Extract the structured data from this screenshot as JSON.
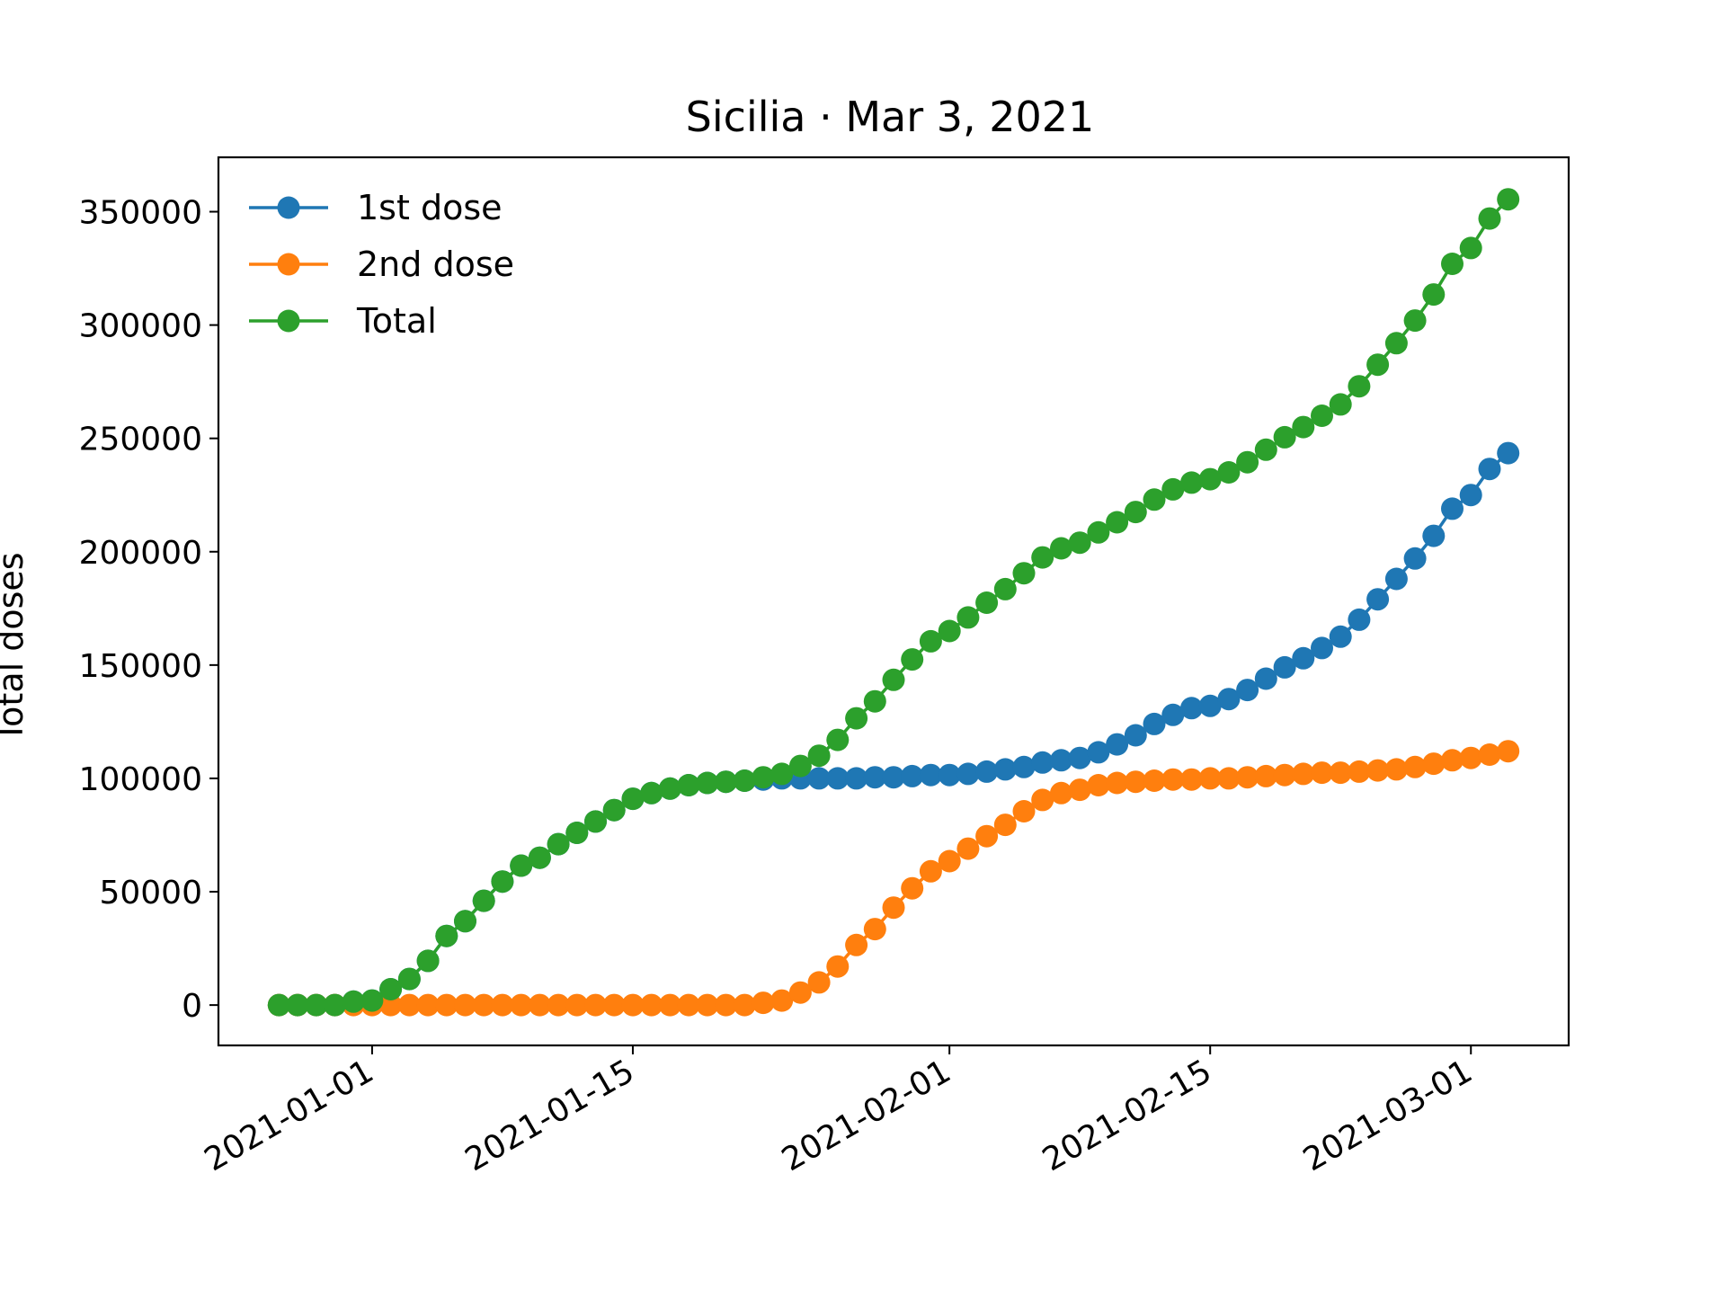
{
  "chart_data": {
    "type": "line",
    "title": "Sicilia · Mar 3, 2021",
    "xlabel": "",
    "ylabel": "Total doses",
    "x_start": "2020-12-27",
    "x_end": "2021-03-03",
    "x_ticks": [
      "2021-01-01",
      "2021-01-15",
      "2021-02-01",
      "2021-02-15",
      "2021-03-01"
    ],
    "xlim": [
      "2020-12-23T18:00",
      "2021-03-06T06:00"
    ],
    "y_ticks": [
      0,
      50000,
      100000,
      150000,
      200000,
      250000,
      300000,
      350000
    ],
    "ylim": [
      -17800,
      374000
    ],
    "grid": false,
    "legend_position": "top-left",
    "marker": "circle",
    "series": [
      {
        "name": "1st dose",
        "color": "#1f77b4",
        "values": [
          0,
          0,
          0,
          0,
          1500,
          2000,
          7000,
          11500,
          19500,
          30500,
          37000,
          46000,
          54500,
          61500,
          65000,
          71000,
          76000,
          81000,
          86000,
          91000,
          93500,
          95500,
          97000,
          98000,
          98500,
          99000,
          99500,
          100000,
          100000,
          100000,
          100000,
          100000,
          100500,
          100500,
          101000,
          101500,
          101500,
          102000,
          103000,
          104000,
          105000,
          107000,
          108000,
          109000,
          111500,
          115000,
          119000,
          124000,
          128000,
          131000,
          132000,
          135000,
          139000,
          144000,
          149000,
          153000,
          157500,
          162500,
          170000,
          179000,
          188000,
          197000,
          207000,
          219000,
          225000,
          236500,
          243500
        ]
      },
      {
        "name": "2nd dose",
        "color": "#ff7f0e",
        "values": [
          0,
          0,
          0,
          0,
          0,
          0,
          0,
          0,
          0,
          0,
          0,
          0,
          0,
          0,
          0,
          0,
          0,
          0,
          0,
          0,
          0,
          0,
          0,
          0,
          0,
          0,
          1000,
          2000,
          5500,
          10000,
          17000,
          26500,
          33500,
          43000,
          51500,
          59000,
          63500,
          69000,
          74500,
          79500,
          85500,
          90500,
          93500,
          95000,
          97000,
          98000,
          98500,
          99000,
          99500,
          99500,
          100000,
          100000,
          100500,
          101000,
          101500,
          102000,
          102500,
          102500,
          103000,
          103500,
          104000,
          105000,
          106500,
          108000,
          109000,
          110500,
          112000
        ]
      },
      {
        "name": "Total",
        "color": "#2ca02c",
        "values": [
          0,
          0,
          0,
          0,
          1500,
          2000,
          7000,
          11500,
          19500,
          30500,
          37000,
          46000,
          54500,
          61500,
          65000,
          71000,
          76000,
          81000,
          86000,
          91000,
          93500,
          95500,
          97000,
          98000,
          98500,
          99000,
          100500,
          102000,
          105500,
          110000,
          117000,
          126500,
          134000,
          143500,
          152500,
          160500,
          165000,
          171000,
          177500,
          183500,
          190500,
          197500,
          201500,
          204000,
          208500,
          213000,
          217500,
          223000,
          227500,
          230500,
          232000,
          235000,
          239500,
          245000,
          250500,
          255000,
          260000,
          265000,
          273000,
          282500,
          292000,
          302000,
          313500,
          327000,
          334000,
          347000,
          355500
        ]
      }
    ]
  }
}
